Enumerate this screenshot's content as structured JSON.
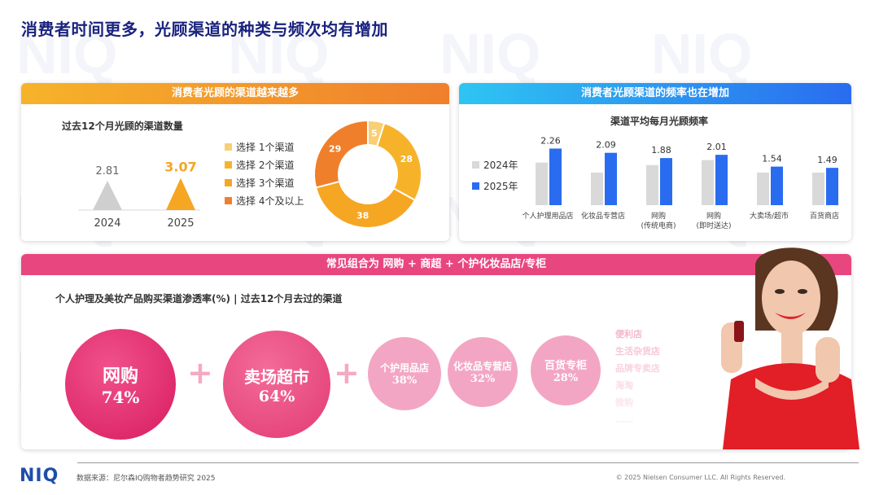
{
  "title": "消费者时间更多，光顾渠道的种类与频次均有增加",
  "left_card": {
    "header": "消费者光顾的渠道越来越多",
    "subtitle": "过去12个月光顾的渠道数量",
    "legend": [
      "选择 1个渠道",
      "选择 2个渠道",
      "选择 3个渠道",
      "选择 4个及以上"
    ]
  },
  "right_card": {
    "header": "消费者光顾渠道的频率也在增加",
    "subtitle": "渠道平均每月光顾频率",
    "legend": [
      "2024年",
      "2025年"
    ]
  },
  "bottom_card": {
    "header": "常见组合为 网购 + 商超 + 个护化妆品店/专柜",
    "subtitle": "个人护理及美妆产品购买渠道渗透率(%) | 过去12个月去过的渠道",
    "circles": [
      {
        "name": "网购",
        "pct": "74%"
      },
      {
        "name": "卖场超市",
        "pct": "64%"
      },
      {
        "name": "个护用品店",
        "pct": "38%"
      },
      {
        "name": "化妆品专营店",
        "pct": "32%"
      },
      {
        "name": "百货专柜",
        "pct": "28%"
      }
    ],
    "plus": "+",
    "faded_channels": [
      "便利店",
      "生活杂货店",
      "品牌专卖店",
      "海淘",
      "微购",
      "……"
    ]
  },
  "footer": {
    "logo": "NIQ",
    "source": "数据来源：尼尔森IQ购物者趋势研究 2025",
    "copyright": "© 2025 Nielsen Consumer LLC. All Rights Reserved."
  },
  "colors": {
    "navy": "#1a237e",
    "orange": "#f07f2c",
    "yellow": "#f6b32a",
    "blue": "#2a6cf0",
    "gray_bar": "#d9d9d9",
    "pink": "#e8467f"
  },
  "chart_data": [
    {
      "type": "bar",
      "title": "过去12个月光顾的渠道数量",
      "categories": [
        "2024",
        "2025"
      ],
      "values": [
        2.81,
        3.07
      ],
      "ylim": [
        0,
        3.5
      ]
    },
    {
      "type": "pie",
      "categories": [
        "选择 1个渠道",
        "选择 2个渠道",
        "选择 3个渠道",
        "选择 4个及以上"
      ],
      "values": [
        5,
        28,
        38,
        29
      ],
      "colors": [
        "#f9cf73",
        "#f6b32a",
        "#f5a623",
        "#f07f2c"
      ],
      "donut": true
    },
    {
      "type": "bar",
      "title": "渠道平均每月光顾频率",
      "categories": [
        "个人护理用品店",
        "化妆品专营店",
        "网购\n(传统电商)",
        "网购\n(即时送达)",
        "大卖场/超市",
        "百货商店"
      ],
      "series": [
        {
          "name": "2024年",
          "values": [
            1.7,
            1.3,
            1.6,
            1.8,
            1.3,
            1.3
          ]
        },
        {
          "name": "2025年",
          "values": [
            2.26,
            2.09,
            1.88,
            2.01,
            1.54,
            1.49
          ]
        }
      ],
      "data_labels": [
        "2.26",
        "2.09",
        "1.88",
        "2.01",
        "1.54",
        "1.49"
      ],
      "ylim": [
        0,
        2.6
      ],
      "legend": "left"
    }
  ]
}
